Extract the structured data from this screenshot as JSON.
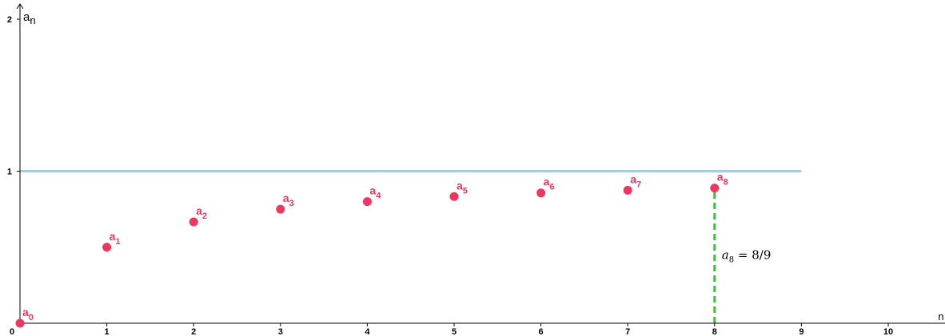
{
  "chart_data": {
    "type": "scatter",
    "xlabel": "n",
    "ylabel": "a_n",
    "ylabel_parts": [
      "a",
      "n"
    ],
    "xlim": [
      0,
      10.6
    ],
    "ylim": [
      0,
      2.05
    ],
    "x_ticks": [
      0,
      1,
      2,
      3,
      4,
      5,
      6,
      7,
      8,
      9,
      10
    ],
    "y_ticks": [
      1,
      2
    ],
    "grid": false,
    "points": [
      {
        "x": 0,
        "y": 0,
        "label": "a",
        "sub": "0"
      },
      {
        "x": 1,
        "y": 0.5,
        "label": "a",
        "sub": "1"
      },
      {
        "x": 2,
        "y": 0.6667,
        "label": "a",
        "sub": "2"
      },
      {
        "x": 3,
        "y": 0.75,
        "label": "a",
        "sub": "3"
      },
      {
        "x": 4,
        "y": 0.8,
        "label": "a",
        "sub": "4"
      },
      {
        "x": 5,
        "y": 0.8333,
        "label": "a",
        "sub": "5"
      },
      {
        "x": 6,
        "y": 0.8571,
        "label": "a",
        "sub": "6"
      },
      {
        "x": 7,
        "y": 0.875,
        "label": "a",
        "sub": "7"
      },
      {
        "x": 8,
        "y": 0.8889,
        "label": "a",
        "sub": "8"
      }
    ],
    "horizontal_line": {
      "y": 1,
      "x_from": 0,
      "x_to": 9
    },
    "vertical_segment": {
      "x": 8,
      "y_from": 0,
      "y_to": 0.8889
    },
    "annotation": {
      "var": "a",
      "sub": "8",
      "rest": " = 8/9",
      "x": 8,
      "y": 0.45
    }
  },
  "colors": {
    "point": "#f0365f",
    "horizontal_line": "#8fd3f2",
    "vertical_segment": "#3cbf3c",
    "axis": "#000000"
  }
}
